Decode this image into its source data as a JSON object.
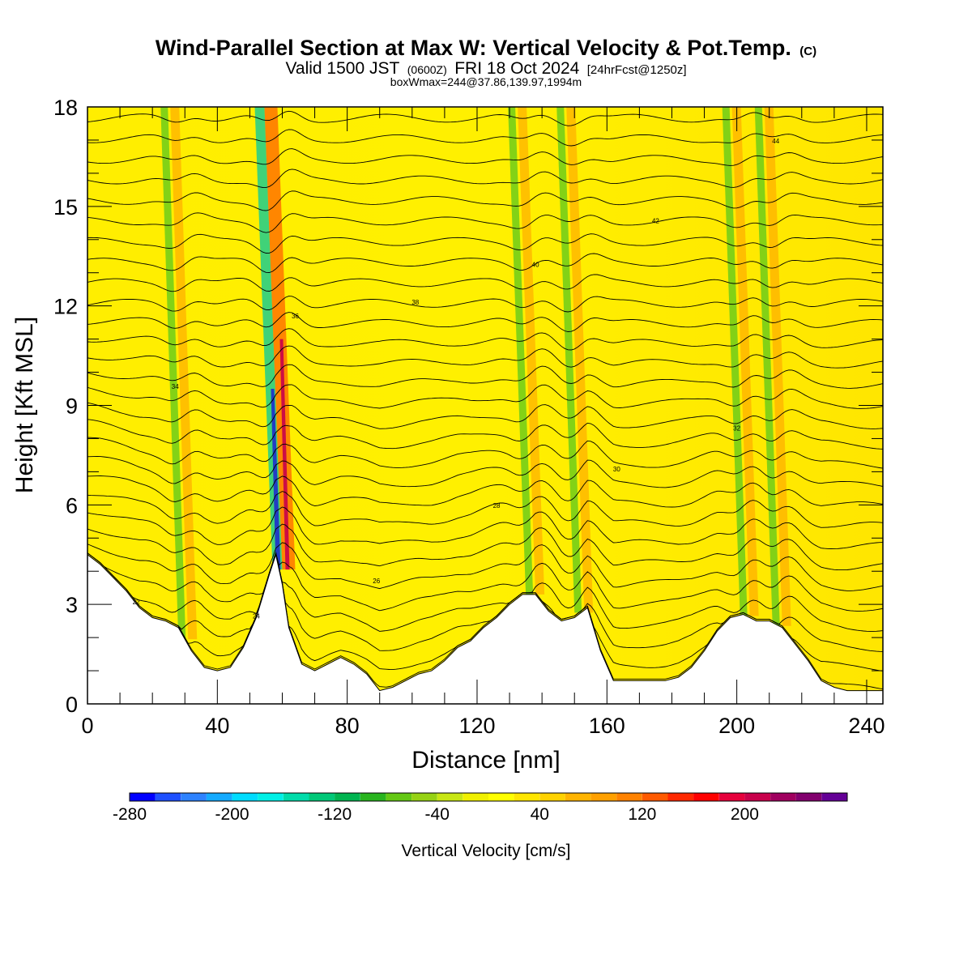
{
  "header": {
    "title_main": "Wind-Parallel Section at Max W: Vertical Velocity & Pot.Temp.",
    "title_mark": "(C)",
    "valid_prefix": "Valid 1500 JST",
    "valid_utc": "(0600Z)",
    "valid_date": "FRI 18 Oct 2024",
    "forecast_info": "[24hrFcst@1250z]",
    "box_info": "boxWmax=244@37.86,139.97,1994m"
  },
  "chart_data": {
    "type": "heatmap",
    "xlabel": "Distance [nm]",
    "ylabel": "Height [Kft MSL]",
    "xlim": [
      0,
      245
    ],
    "ylim": [
      0,
      18
    ],
    "x_ticks": [
      0,
      40,
      80,
      120,
      160,
      200,
      240
    ],
    "y_ticks": [
      0,
      3,
      6,
      9,
      12,
      15,
      18
    ],
    "terrain_profile": {
      "x": [
        0,
        4,
        8,
        12,
        16,
        20,
        24,
        28,
        32,
        36,
        40,
        44,
        48,
        52,
        56,
        58,
        60,
        62,
        66,
        70,
        74,
        78,
        82,
        86,
        90,
        94,
        98,
        102,
        106,
        110,
        114,
        118,
        122,
        126,
        130,
        134,
        138,
        142,
        146,
        150,
        154,
        158,
        162,
        166,
        170,
        174,
        178,
        182,
        186,
        190,
        194,
        198,
        202,
        206,
        210,
        214,
        218,
        222,
        226,
        230,
        234,
        238,
        242,
        245
      ],
      "y": [
        4.5,
        4.2,
        3.8,
        3.4,
        2.9,
        2.6,
        2.5,
        2.3,
        1.6,
        1.1,
        1.0,
        1.1,
        1.7,
        2.6,
        3.9,
        4.5,
        3.6,
        2.3,
        1.2,
        1.0,
        1.2,
        1.4,
        1.2,
        0.9,
        0.4,
        0.5,
        0.7,
        0.9,
        1.0,
        1.3,
        1.7,
        1.9,
        2.3,
        2.6,
        3.0,
        3.3,
        3.3,
        2.8,
        2.5,
        2.6,
        2.9,
        1.6,
        0.7,
        0.7,
        0.7,
        0.7,
        0.7,
        0.8,
        1.1,
        1.6,
        2.2,
        2.6,
        2.7,
        2.5,
        2.5,
        2.3,
        1.8,
        1.3,
        0.7,
        0.5,
        0.4,
        0.4,
        0.4,
        0.4
      ]
    },
    "vertical_velocity_features": [
      {
        "x": 59,
        "kind": "strong-wave",
        "peak_cms": 200
      },
      {
        "x": 30,
        "kind": "wave",
        "peak_cms": 120
      },
      {
        "x": 137,
        "kind": "wave",
        "peak_cms": 100
      },
      {
        "x": 152,
        "kind": "wave",
        "peak_cms": 120
      },
      {
        "x": 203,
        "kind": "wave",
        "peak_cms": 140
      },
      {
        "x": 213,
        "kind": "wave",
        "peak_cms": 160
      }
    ],
    "colorbar": {
      "label": "Vertical Velocity [cm/s]",
      "min": -280,
      "max": 280,
      "step": 20,
      "tick_values": [
        -280,
        -200,
        -120,
        -40,
        40,
        120,
        200
      ],
      "tick_labels": [
        "-280",
        "-200",
        "-120",
        "-40",
        "40",
        "120",
        "200"
      ],
      "colors": [
        "#0000ff",
        "#1e50ff",
        "#2d82ff",
        "#14aaff",
        "#00dcff",
        "#00f0e6",
        "#00dcaa",
        "#00c878",
        "#00b450",
        "#28b41e",
        "#64c814",
        "#96d214",
        "#c8e614",
        "#f0f000",
        "#ffff00",
        "#ffe600",
        "#ffd200",
        "#ffb400",
        "#ffa000",
        "#ff8200",
        "#ff5a00",
        "#ff2800",
        "#ff0000",
        "#e6003c",
        "#c8004b",
        "#a0005f",
        "#82006e",
        "#640096"
      ]
    },
    "theta_contours": [
      {
        "label": "22",
        "base_y": 0.6
      },
      {
        "label": "24",
        "base_y": 2.0
      },
      {
        "label": "26",
        "base_y": 3.6
      },
      {
        "label": "28",
        "base_y": 5.2
      },
      {
        "label": "30",
        "base_y": 6.9
      },
      {
        "label": "32",
        "base_y": 8.2
      },
      {
        "label": "34",
        "base_y": 9.4
      },
      {
        "label": "36",
        "base_y": 11.4
      },
      {
        "label": "38",
        "base_y": 12.2
      },
      {
        "label": "40",
        "base_y": 13.3
      },
      {
        "label": "42",
        "base_y": 14.6
      },
      {
        "label": "44",
        "base_y": 16.9
      }
    ],
    "grid": false
  }
}
